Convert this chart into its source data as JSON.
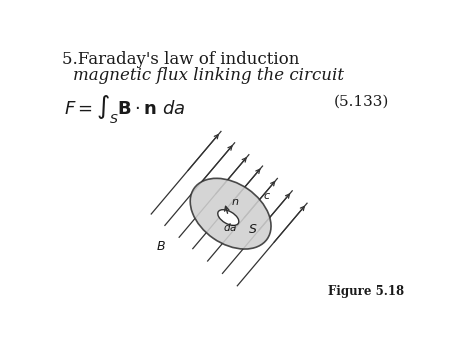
{
  "title_line1": "5.Faraday's law of induction",
  "title_line2": "magnetic flux linking the circuit",
  "eq_number": "(5.133)",
  "fig_label": "Figure 5.18",
  "bg_color": "#ffffff",
  "text_color": "#1a1a1a",
  "ellipse_fill": "#d0d0d0",
  "ellipse_edge": "#333333",
  "inner_ellipse_fill": "#ffffff"
}
